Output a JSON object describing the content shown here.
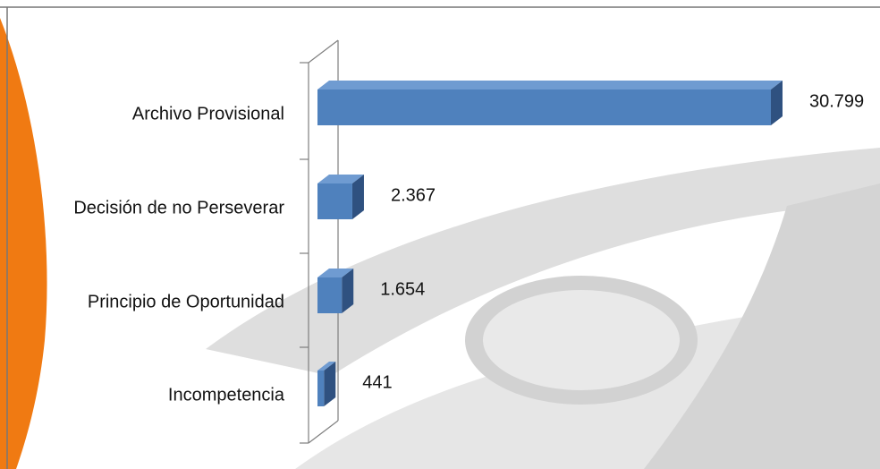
{
  "chart_data": {
    "type": "bar",
    "orientation": "horizontal",
    "three_d": true,
    "categories": [
      "Archivo Provisional",
      "Decisión de no Perseverar",
      "Principio de Oportunidad",
      "Incompetencia"
    ],
    "values": [
      30799,
      2367,
      1654,
      441
    ],
    "value_labels": [
      "30.799",
      "2.367",
      "1.654",
      "441"
    ],
    "color": "#4f81bd"
  }
}
